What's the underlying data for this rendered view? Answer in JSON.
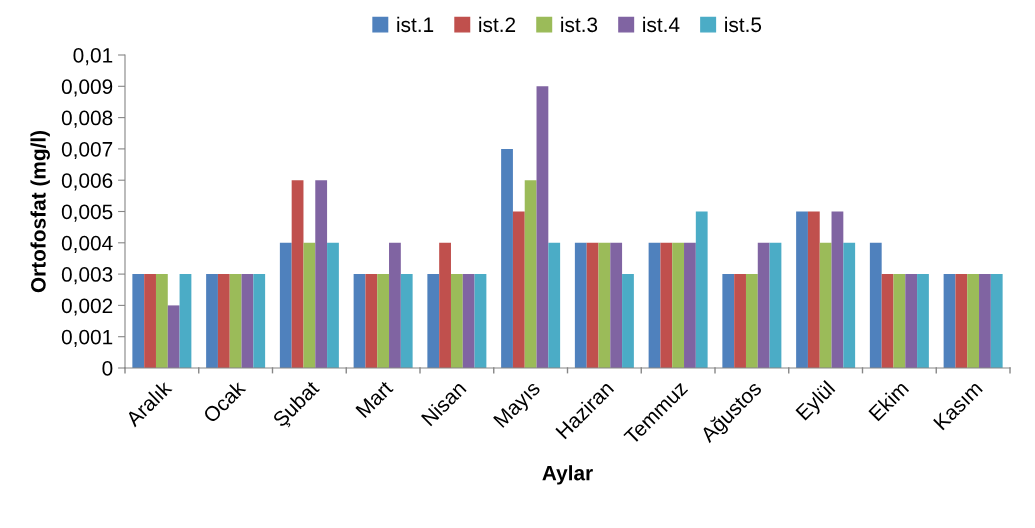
{
  "chart_data": {
    "type": "bar",
    "xlabel": "Aylar",
    "ylabel": "Ortofosfat (mg/l)",
    "categories": [
      "Aralık",
      "Ocak",
      "Şubat",
      "Mart",
      "Nisan",
      "Mayıs",
      "Haziran",
      "Temmuz",
      "Ağustos",
      "Eylül",
      "Ekim",
      "Kasım"
    ],
    "series": [
      {
        "name": "ist.1",
        "color": "#4f81bd",
        "values": [
          0.003,
          0.003,
          0.004,
          0.003,
          0.003,
          0.007,
          0.004,
          0.004,
          0.003,
          0.005,
          0.004,
          0.003
        ]
      },
      {
        "name": "ist.2",
        "color": "#c0504d",
        "values": [
          0.003,
          0.003,
          0.006,
          0.003,
          0.004,
          0.005,
          0.004,
          0.004,
          0.003,
          0.005,
          0.003,
          0.003
        ]
      },
      {
        "name": "ist.3",
        "color": "#9bbb59",
        "values": [
          0.003,
          0.003,
          0.004,
          0.003,
          0.003,
          0.006,
          0.004,
          0.004,
          0.003,
          0.004,
          0.003,
          0.003
        ]
      },
      {
        "name": "ist.4",
        "color": "#8064a2",
        "values": [
          0.002,
          0.003,
          0.006,
          0.004,
          0.003,
          0.009,
          0.004,
          0.004,
          0.004,
          0.005,
          0.003,
          0.003
        ]
      },
      {
        "name": "ist.5",
        "color": "#4bacc6",
        "values": [
          0.003,
          0.003,
          0.004,
          0.003,
          0.003,
          0.004,
          0.003,
          0.005,
          0.004,
          0.004,
          0.003,
          0.003
        ]
      }
    ],
    "ylim": [
      0,
      0.01
    ],
    "yticks": [
      0,
      {
        "value": 0.001,
        "label": "0,001"
      },
      {
        "value": 0.002,
        "label": "0,002"
      },
      {
        "value": 0.003,
        "label": "0,003"
      },
      {
        "value": 0.004,
        "label": "0,004"
      },
      {
        "value": 0.005,
        "label": "0,005"
      },
      {
        "value": 0.006,
        "label": "0,006"
      },
      {
        "value": 0.007,
        "label": "0,007"
      },
      {
        "value": 0.008,
        "label": "0,008"
      },
      {
        "value": 0.009,
        "label": "0,009"
      },
      {
        "value": 0.01,
        "label": "0,01"
      }
    ],
    "grid": false,
    "legend": "top"
  }
}
